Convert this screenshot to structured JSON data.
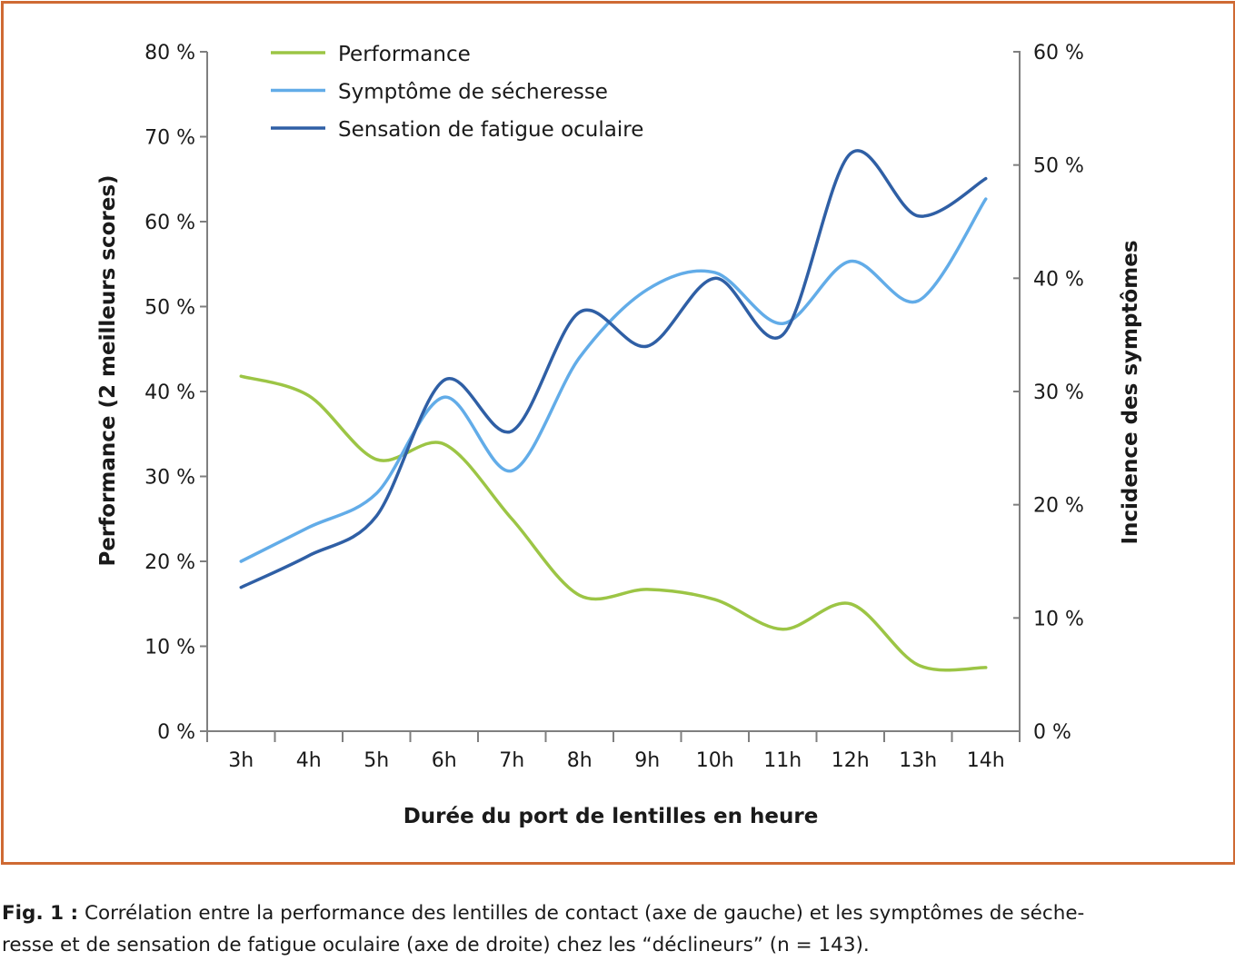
{
  "chart_data": {
    "type": "line",
    "categories": [
      "3h",
      "4h",
      "5h",
      "6h",
      "7h",
      "8h",
      "9h",
      "10h",
      "11h",
      "12h",
      "13h",
      "14h"
    ],
    "xlabel": "Durée du port de lentilles en heure",
    "ylabel_left": "Performance (2 meilleurs scores)",
    "ylabel_right": "Incidence des symptômes",
    "left_axis": {
      "min": 0,
      "max": 80,
      "step": 10,
      "ticks": [
        "0 %",
        "10 %",
        "20 %",
        "30 %",
        "40 %",
        "50 %",
        "60 %",
        "70 %",
        "80 %"
      ]
    },
    "right_axis": {
      "min": 0,
      "max": 60,
      "step": 10,
      "ticks": [
        "0 %",
        "10 %",
        "20 %",
        "30 %",
        "40 %",
        "50 %",
        "60 %"
      ]
    },
    "legend_position": "top-left",
    "grid": false,
    "series": [
      {
        "name": "Performance",
        "axis": "left",
        "color": "#9cc545",
        "values": [
          41.8,
          39.5,
          32.0,
          33.8,
          25.0,
          16.0,
          16.7,
          15.5,
          12.0,
          15.0,
          7.8,
          7.5
        ]
      },
      {
        "name": "Symptôme de sécheresse",
        "axis": "right",
        "color": "#62ace8",
        "values": [
          15.0,
          18.0,
          21.0,
          29.5,
          23.0,
          33.0,
          39.0,
          40.5,
          36.0,
          41.5,
          38.0,
          47.0
        ]
      },
      {
        "name": "Sensation de fatigue oculaire",
        "axis": "right",
        "color": "#2f5fa5",
        "values": [
          12.7,
          15.5,
          19.0,
          31.0,
          26.5,
          37.0,
          34.0,
          40.0,
          35.0,
          51.0,
          45.5,
          48.8
        ]
      }
    ]
  },
  "caption": {
    "label": "Fig. 1 :",
    "line1": "Corrélation entre la performance des lentilles de contact (axe de gauche) et les symptômes de séche-",
    "line2": "resse et de sensation de fatigue oculaire (axe de droite) chez les “déclineurs” (n = 143)."
  }
}
